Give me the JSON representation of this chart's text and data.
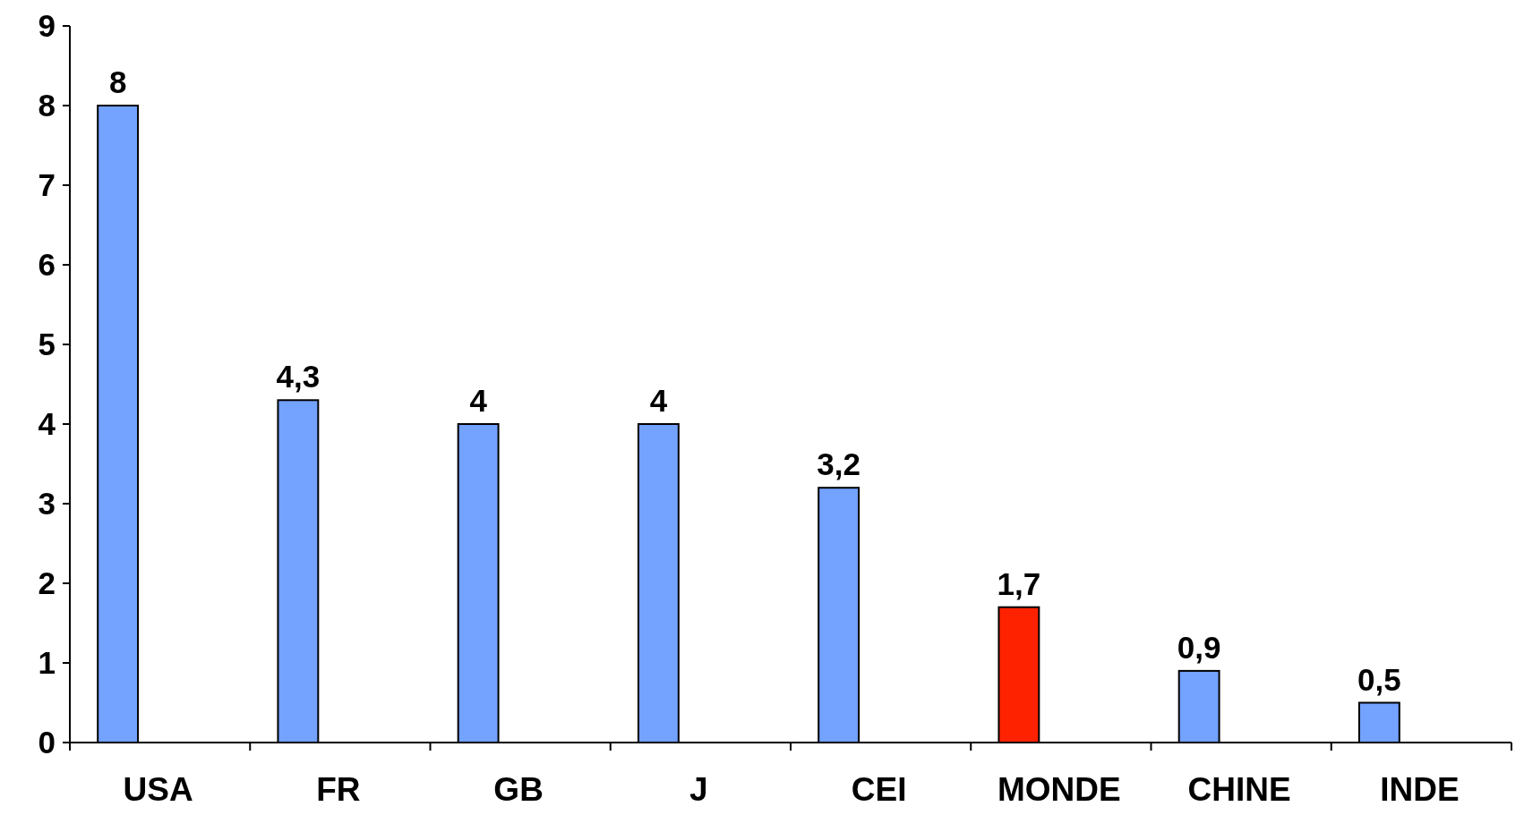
{
  "chart_data": {
    "type": "bar",
    "categories": [
      "USA",
      "FR",
      "GB",
      "J",
      "CEI",
      "MONDE",
      "CHINE",
      "INDE"
    ],
    "values": [
      8,
      4.3,
      4,
      4,
      3.2,
      1.7,
      0.9,
      0.5
    ],
    "colors": [
      "#73a2ff",
      "#73a2ff",
      "#73a2ff",
      "#73a2ff",
      "#73a2ff",
      "#ff2200",
      "#73a2ff",
      "#73a2ff"
    ],
    "value_labels": [
      "8",
      "4,3",
      "4",
      "4",
      "3,2",
      "1,7",
      "0,9",
      "0,5"
    ],
    "ylim": [
      0,
      9
    ],
    "yticks": [
      0,
      1,
      2,
      3,
      4,
      5,
      6,
      7,
      8,
      9
    ],
    "grid": false
  }
}
